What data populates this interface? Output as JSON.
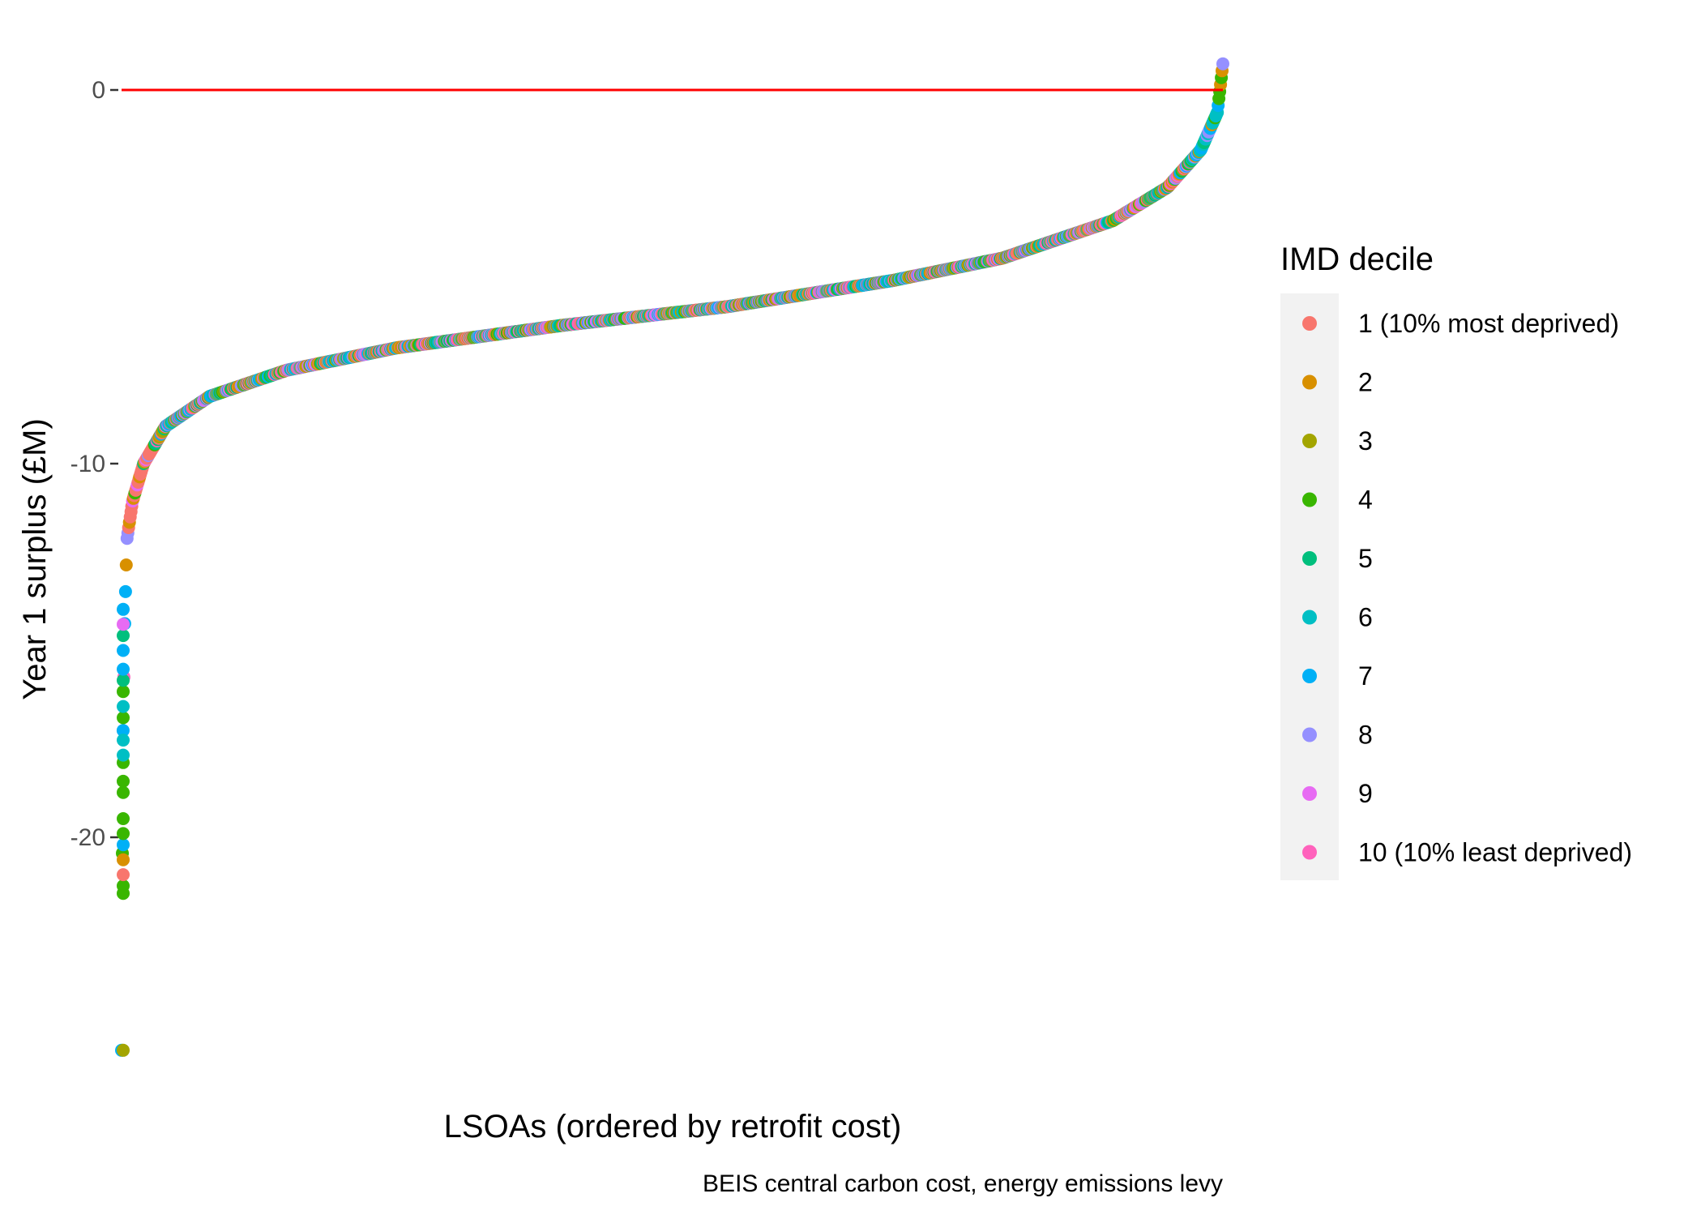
{
  "chart_data": {
    "type": "scatter",
    "title": "",
    "xlabel": "LSOAs (ordered by retrofit cost)",
    "ylabel": "Year 1 surplus (£M)",
    "caption": "BEIS central carbon cost, energy emissions levy",
    "x_axis": {
      "ticks": [],
      "range": [
        0,
        1
      ]
    },
    "y_axis": {
      "ticks": [
        0,
        -10,
        -20
      ],
      "tick_labels": [
        "0",
        "-10",
        "-20"
      ],
      "range": [
        -26.5,
        1.5
      ]
    },
    "grid": false,
    "reference_line": {
      "y": 0,
      "color": "#ff0000"
    },
    "legend": {
      "title": "IMD decile",
      "position": "right",
      "entries": [
        {
          "label": "1 (10% most deprived)",
          "color": "#F8766D"
        },
        {
          "label": "2",
          "color": "#D89000"
        },
        {
          "label": "3",
          "color": "#A3A500"
        },
        {
          "label": "4",
          "color": "#39B600"
        },
        {
          "label": "5",
          "color": "#00BF7D"
        },
        {
          "label": "6",
          "color": "#00BFC4"
        },
        {
          "label": "7",
          "color": "#00B0F6"
        },
        {
          "label": "8",
          "color": "#9590FF"
        },
        {
          "label": "9",
          "color": "#E76BF3"
        },
        {
          "label": "10 (10% least deprived)",
          "color": "#FF62BC"
        }
      ]
    },
    "series_shape": {
      "description_points": [
        [
          0.0,
          -25.7
        ],
        [
          0.0,
          -21.5
        ],
        [
          0.001,
          -20.0
        ],
        [
          0.001,
          -18.0
        ],
        [
          0.002,
          -16.0
        ],
        [
          0.003,
          -14.0
        ],
        [
          0.005,
          -12.0
        ],
        [
          0.01,
          -11.0
        ],
        [
          0.02,
          -10.0
        ],
        [
          0.04,
          -9.0
        ],
        [
          0.08,
          -8.2
        ],
        [
          0.15,
          -7.5
        ],
        [
          0.25,
          -6.9
        ],
        [
          0.4,
          -6.3
        ],
        [
          0.55,
          -5.8
        ],
        [
          0.7,
          -5.1
        ],
        [
          0.8,
          -4.5
        ],
        [
          0.9,
          -3.5
        ],
        [
          0.95,
          -2.6
        ],
        [
          0.98,
          -1.6
        ],
        [
          0.995,
          -0.6
        ],
        [
          1.0,
          0.7
        ]
      ]
    }
  }
}
